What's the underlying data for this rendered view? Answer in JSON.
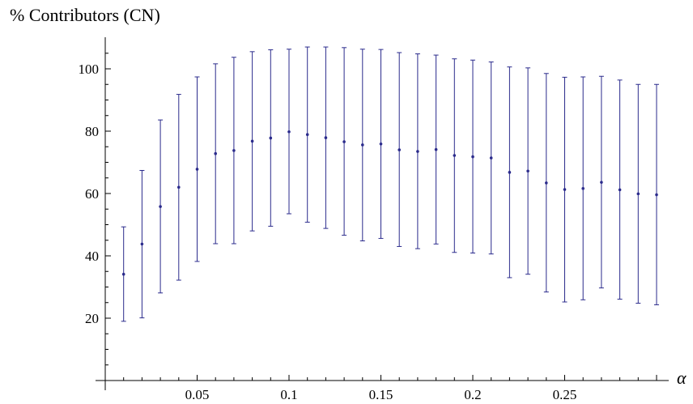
{
  "chart_data": {
    "type": "scatter",
    "title": "",
    "ylabel": "% Contributors (CN)",
    "xlabel": "α",
    "xlim": [
      0,
      0.305
    ],
    "ylim": [
      0,
      110
    ],
    "x_ticks": [
      0.05,
      0.1,
      0.15,
      0.2,
      0.25
    ],
    "x_tick_labels": [
      "0.05",
      "0.1",
      "0.15",
      "0.2",
      "0.25"
    ],
    "y_ticks": [
      20,
      40,
      60,
      80,
      100
    ],
    "y_tick_labels": [
      "20",
      "40",
      "60",
      "80",
      "100"
    ],
    "grid": false,
    "color": "#2b2b8c",
    "series": [
      {
        "x": [
          0.01,
          0.02,
          0.03,
          0.04,
          0.05,
          0.06,
          0.07,
          0.08,
          0.09,
          0.1,
          0.11,
          0.12,
          0.13,
          0.14,
          0.15,
          0.16,
          0.17,
          0.18,
          0.19,
          0.2,
          0.21,
          0.22,
          0.23,
          0.24,
          0.25,
          0.26,
          0.27,
          0.28,
          0.29,
          0.3
        ],
        "y": [
          34.1,
          43.8,
          55.8,
          62.0,
          67.8,
          72.8,
          73.8,
          76.8,
          77.8,
          79.8,
          78.9,
          77.9,
          76.6,
          75.6,
          75.9,
          74.0,
          73.5,
          74.1,
          72.2,
          71.8,
          71.4,
          66.8,
          67.2,
          63.4,
          61.3,
          61.6,
          63.6,
          61.2,
          59.9,
          59.6
        ],
        "y_low": [
          19.0,
          20.1,
          28.1,
          32.2,
          38.2,
          43.9,
          43.9,
          48.0,
          49.5,
          53.5,
          50.8,
          48.8,
          46.6,
          44.8,
          45.6,
          43.0,
          42.3,
          43.8,
          41.1,
          40.9,
          40.6,
          33.0,
          34.1,
          28.4,
          25.2,
          25.9,
          29.7,
          26.1,
          24.8,
          24.3
        ],
        "y_high": [
          49.3,
          67.4,
          83.6,
          91.8,
          97.4,
          101.6,
          103.7,
          105.5,
          106.1,
          106.3,
          107.0,
          107.0,
          106.8,
          106.3,
          106.2,
          105.2,
          104.8,
          104.4,
          103.2,
          102.8,
          102.2,
          100.6,
          100.3,
          98.5,
          97.3,
          97.4,
          97.6,
          96.4,
          95.0,
          95.0
        ]
      }
    ]
  }
}
